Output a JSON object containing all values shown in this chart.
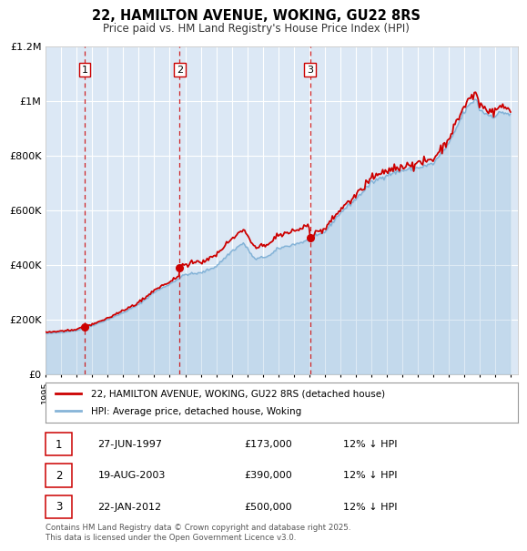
{
  "title": "22, HAMILTON AVENUE, WOKING, GU22 8RS",
  "subtitle": "Price paid vs. HM Land Registry's House Price Index (HPI)",
  "plot_bg_color": "#dce8f5",
  "grid_color": "#ffffff",
  "red_line_color": "#cc0000",
  "blue_line_color": "#7aadd4",
  "vline_color": "#cc0000",
  "legend_entries": [
    "22, HAMILTON AVENUE, WOKING, GU22 8RS (detached house)",
    "HPI: Average price, detached house, Woking"
  ],
  "sale_years": [
    1997.497,
    2003.634,
    2012.055
  ],
  "sale_prices": [
    173000,
    390000,
    500000
  ],
  "sale_labels": [
    "1",
    "2",
    "3"
  ],
  "table_rows": [
    [
      "1",
      "27-JUN-1997",
      "£173,000",
      "12% ↓ HPI"
    ],
    [
      "2",
      "19-AUG-2003",
      "£390,000",
      "12% ↓ HPI"
    ],
    [
      "3",
      "22-JAN-2012",
      "£500,000",
      "12% ↓ HPI"
    ]
  ],
  "footnote": "Contains HM Land Registry data © Crown copyright and database right 2025.\nThis data is licensed under the Open Government Licence v3.0.",
  "ylim": [
    0,
    1200000
  ],
  "yticks": [
    0,
    200000,
    400000,
    600000,
    800000,
    1000000,
    1200000
  ],
  "ytick_labels": [
    "£0",
    "£200K",
    "£400K",
    "£600K",
    "£800K",
    "£1M",
    "£1.2M"
  ],
  "xmin": 1995.0,
  "xmax": 2025.5
}
